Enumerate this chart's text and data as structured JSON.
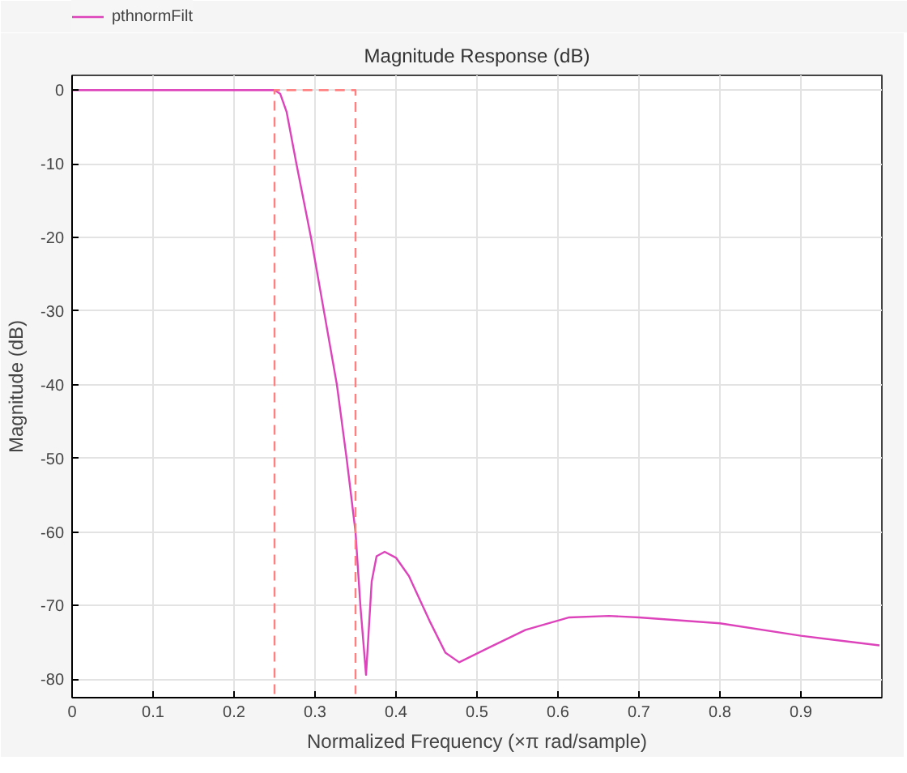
{
  "chart_data": {
    "type": "line",
    "title": "Magnitude Response (dB)",
    "xlabel": "Normalized Frequency (×π rad/sample)",
    "ylabel": "Magnitude (dB)",
    "xlim": [
      0,
      1
    ],
    "ylim": [
      -82.5,
      2
    ],
    "xticks": [
      0,
      0.1,
      0.2,
      0.3,
      0.4,
      0.5,
      0.6,
      0.7,
      0.8,
      0.9
    ],
    "yticks": [
      0,
      -10,
      -20,
      -30,
      -40,
      -50,
      -60,
      -70,
      -80
    ],
    "grid": true,
    "legend": "top left",
    "series": [
      {
        "name": "pthnormFilt",
        "color": "#dd44bb",
        "x": [
          0,
          0.1,
          0.2,
          0.25,
          0.257,
          0.265,
          0.277,
          0.295,
          0.311,
          0.327,
          0.339,
          0.35,
          0.356,
          0.363,
          0.37,
          0.376,
          0.386,
          0.4,
          0.416,
          0.442,
          0.461,
          0.478,
          0.515,
          0.56,
          0.614,
          0.663,
          0.7,
          0.8,
          0.9,
          0.997
        ],
        "values": [
          0,
          0,
          0,
          0,
          -0.5,
          -3,
          -10,
          -20,
          -30,
          -40,
          -50,
          -60,
          -70,
          -79.4,
          -66.7,
          -63.3,
          -62.7,
          -63.5,
          -66,
          -72.2,
          -76.4,
          -77.7,
          -75.7,
          -73.3,
          -71.6,
          -71.4,
          -71.6,
          -72.4,
          -74.1,
          -75.4
        ]
      },
      {
        "color": "#ff8080",
        "line_style": "dashed",
        "x": [
          0.25,
          0.25,
          0.35,
          0.35
        ],
        "values": [
          -82,
          0,
          0,
          -82
        ]
      }
    ]
  }
}
